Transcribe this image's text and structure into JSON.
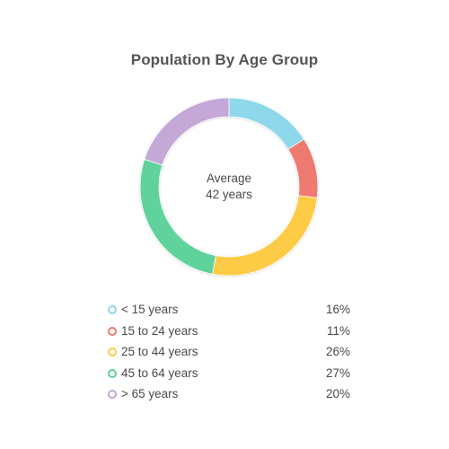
{
  "chart_data": {
    "type": "pie",
    "title": "Population By Age Group",
    "center_label": {
      "line1": "Average",
      "line2": "42 years"
    },
    "categories": [
      "< 15 years",
      "15 to 24 years",
      "25 to 44 years",
      "45 to 64 years",
      "> 65 years"
    ],
    "values": [
      16,
      11,
      26,
      27,
      20
    ],
    "value_labels": [
      "16%",
      "11%",
      "26%",
      "27%",
      "20%"
    ],
    "colors": [
      "#8fd8ec",
      "#ee7a72",
      "#fdcb45",
      "#5fd39b",
      "#c3a8d8"
    ],
    "legend_position": "bottom",
    "donut": true
  }
}
